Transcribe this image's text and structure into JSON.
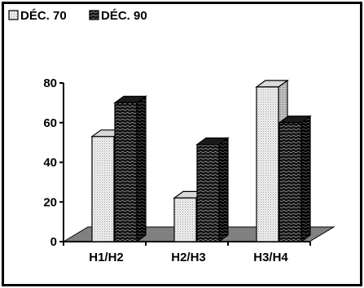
{
  "chart_data": {
    "type": "bar",
    "title": "",
    "xlabel": "",
    "ylabel": "",
    "categories": [
      "H1/H2",
      "H2/H3",
      "H3/H4"
    ],
    "series": [
      {
        "name": "DÉC. 70",
        "values": [
          53,
          22,
          78
        ],
        "color": "#eeeeee",
        "pattern": "dots"
      },
      {
        "name": "DÉC. 90",
        "values": [
          70,
          49,
          60
        ],
        "color": "#1a1a1a",
        "pattern": "waves"
      }
    ],
    "ylim": [
      0,
      80
    ],
    "yticks": [
      "0",
      "20",
      "40",
      "60",
      "80"
    ],
    "grid": false,
    "legend": "top-left",
    "style": "3d"
  }
}
